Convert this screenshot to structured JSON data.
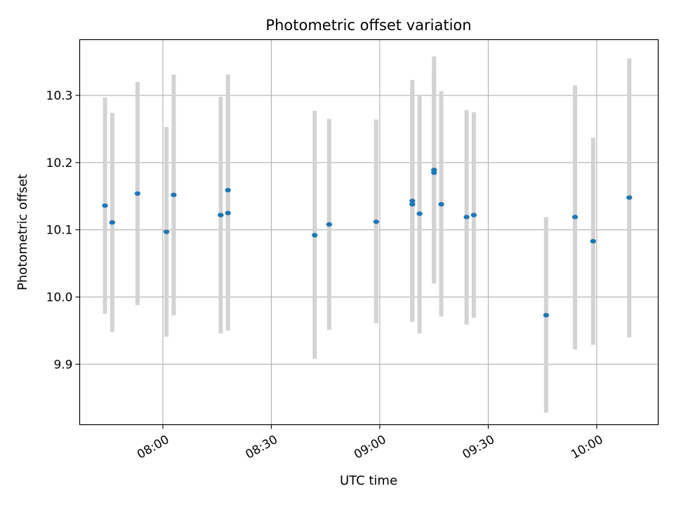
{
  "chart_data": {
    "type": "scatter",
    "title": "Photometric offset variation",
    "xlabel": "UTC time",
    "ylabel": "Photometric offset",
    "x_axis_type": "time",
    "xlim": [
      "07:37",
      "10:17"
    ],
    "ylim": [
      9.81,
      10.383
    ],
    "x_ticks": [
      "08:00",
      "08:30",
      "09:00",
      "09:30",
      "10:00"
    ],
    "y_ticks": [
      9.9,
      10.0,
      10.1,
      10.2,
      10.3
    ],
    "grid": true,
    "point_color": "#1f77b4",
    "errorbar_color": "#d3d3d3",
    "points": [
      {
        "time": "07:44",
        "value": 10.136,
        "low": 9.975,
        "high": 10.297
      },
      {
        "time": "07:46",
        "value": 10.111,
        "low": 9.948,
        "high": 10.274
      },
      {
        "time": "07:53",
        "value": 10.154,
        "low": 9.988,
        "high": 10.32
      },
      {
        "time": "08:01",
        "value": 10.097,
        "low": 9.941,
        "high": 10.253
      },
      {
        "time": "08:03",
        "value": 10.152,
        "low": 9.973,
        "high": 10.331
      },
      {
        "time": "08:16",
        "value": 10.122,
        "low": 9.946,
        "high": 10.298
      },
      {
        "time": "08:18",
        "value": 10.159,
        "low": 9.987,
        "high": 10.331
      },
      {
        "time": "08:18",
        "value": 10.125,
        "low": 9.95,
        "high": 10.3
      },
      {
        "time": "08:42",
        "value": 10.092,
        "low": 9.908,
        "high": 10.277
      },
      {
        "time": "08:46",
        "value": 10.108,
        "low": 9.951,
        "high": 10.265
      },
      {
        "time": "08:59",
        "value": 10.112,
        "low": 9.961,
        "high": 10.264
      },
      {
        "time": "09:09",
        "value": 10.143,
        "low": 9.963,
        "high": 10.323
      },
      {
        "time": "09:09",
        "value": 10.138,
        "low": 9.966,
        "high": 10.31
      },
      {
        "time": "09:11",
        "value": 10.124,
        "low": 9.946,
        "high": 10.301
      },
      {
        "time": "09:15",
        "value": 10.189,
        "low": 10.02,
        "high": 10.358
      },
      {
        "time": "09:15",
        "value": 10.185,
        "low": 10.027,
        "high": 10.343
      },
      {
        "time": "09:17",
        "value": 10.138,
        "low": 9.971,
        "high": 10.306
      },
      {
        "time": "09:24",
        "value": 10.119,
        "low": 9.959,
        "high": 10.278
      },
      {
        "time": "09:26",
        "value": 10.122,
        "low": 9.969,
        "high": 10.275
      },
      {
        "time": "09:46",
        "value": 9.973,
        "low": 9.828,
        "high": 10.119
      },
      {
        "time": "09:54",
        "value": 10.119,
        "low": 9.922,
        "high": 10.315
      },
      {
        "time": "09:59",
        "value": 10.083,
        "low": 9.929,
        "high": 10.237
      },
      {
        "time": "10:09",
        "value": 10.148,
        "low": 9.94,
        "high": 10.355
      }
    ]
  }
}
